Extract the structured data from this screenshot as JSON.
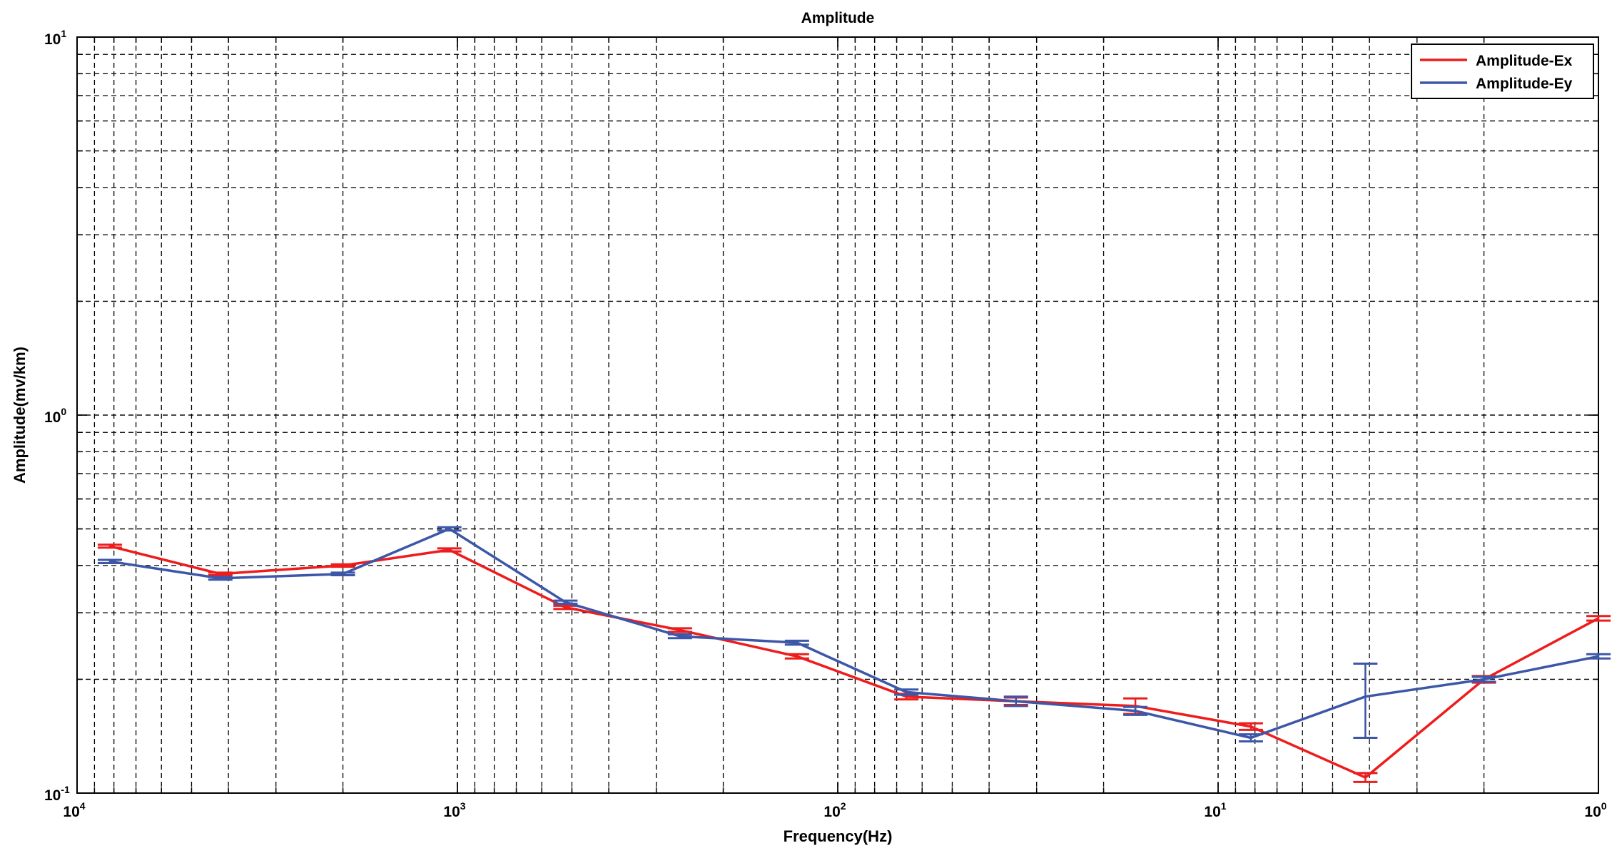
{
  "chart_data": {
    "type": "line",
    "title": "Amplitude",
    "xlabel": "Frequency(Hz)",
    "ylabel": "Amplitude(mv/km)",
    "x_scale": "log",
    "y_scale": "log",
    "x_reversed": true,
    "xlim": [
      10000,
      1
    ],
    "ylim": [
      0.1,
      10
    ],
    "grid": true,
    "grid_minor": true,
    "legend_position": "top-right",
    "x_ticks": [
      {
        "base": "10",
        "exp": "4",
        "value": 10000
      },
      {
        "base": "10",
        "exp": "3",
        "value": 1000
      },
      {
        "base": "10",
        "exp": "2",
        "value": 100
      },
      {
        "base": "10",
        "exp": "1",
        "value": 10
      },
      {
        "base": "10",
        "exp": "0",
        "value": 1
      }
    ],
    "y_ticks": [
      {
        "base": "10",
        "exp": "-1",
        "value": 0.1
      },
      {
        "base": "10",
        "exp": "0",
        "value": 1
      },
      {
        "base": "10",
        "exp": "1",
        "value": 10
      }
    ],
    "series": [
      {
        "name": "Amplitude-Ex",
        "color": "#ee1c1c",
        "x": [
          8200,
          4200,
          2000,
          1050,
          520,
          260,
          128,
          66,
          34,
          16.5,
          8.2,
          4.1,
          2.0,
          1.0
        ],
        "y": [
          0.45,
          0.38,
          0.4,
          0.44,
          0.31,
          0.27,
          0.23,
          0.18,
          0.175,
          0.17,
          0.15,
          0.11,
          0.2,
          0.29
        ],
        "err": [
          0.004,
          0.003,
          0.003,
          0.004,
          0.003,
          0.003,
          0.003,
          0.003,
          0.004,
          0.008,
          0.003,
          0.003,
          0.004,
          0.004
        ]
      },
      {
        "name": "Amplitude-Ey",
        "color": "#3d57a8",
        "x": [
          8200,
          4200,
          2000,
          1050,
          520,
          260,
          128,
          66,
          34,
          16.5,
          8.2,
          4.1,
          2.0,
          1.0
        ],
        "y": [
          0.41,
          0.37,
          0.38,
          0.5,
          0.32,
          0.26,
          0.25,
          0.185,
          0.175,
          0.165,
          0.14,
          0.18,
          0.2,
          0.23
        ],
        "err": [
          0.004,
          0.003,
          0.003,
          0.005,
          0.003,
          0.003,
          0.003,
          0.003,
          0.005,
          0.004,
          0.003,
          0.04,
          0.003,
          0.003
        ]
      }
    ]
  }
}
